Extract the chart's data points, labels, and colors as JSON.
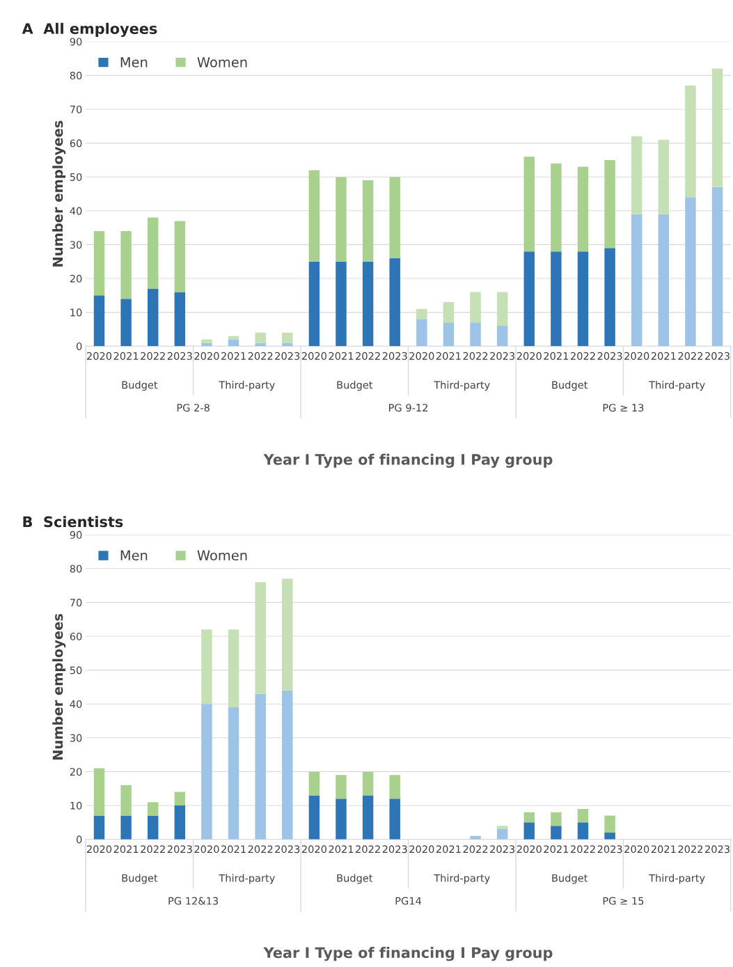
{
  "chart_data": [
    {
      "type": "bar",
      "title": "A  All employees",
      "xlabel": "Year I Type of financing I Pay group",
      "ylabel": "Number employees",
      "stacked": true,
      "ylim": [
        0,
        90
      ],
      "yticks": [
        0,
        10,
        20,
        30,
        40,
        50,
        60,
        70,
        80,
        90
      ],
      "grid": "y",
      "legend": "top left",
      "categories": [
        "2020",
        "2021",
        "2022",
        "2023",
        "2020",
        "2021",
        "2022",
        "2023",
        "2020",
        "2021",
        "2022",
        "2023",
        "2020",
        "2021",
        "2022",
        "2023",
        "2020",
        "2021",
        "2022",
        "2023",
        "2020",
        "2021",
        "2022",
        "2023"
      ],
      "annotations": [
        "Budget",
        "Third-party",
        "Budget",
        "Third-party",
        "Budget",
        "Third-party",
        "PG 2-8",
        "PG 9-12",
        "PG ≥ 13"
      ],
      "series": [
        {
          "name": "Men",
          "color": "#2e75b6",
          "values": [
            15,
            14,
            17,
            16,
            1,
            2,
            1,
            1,
            25,
            25,
            25,
            26,
            8,
            7,
            7,
            6,
            28,
            28,
            28,
            29,
            39,
            39,
            44,
            47
          ],
          "colors": [
            "#2e75b6",
            "#2e75b6",
            "#2e75b6",
            "#2e75b6",
            "#9dc3e6",
            "#9dc3e6",
            "#9dc3e6",
            "#9dc3e6",
            "#2e75b6",
            "#2e75b6",
            "#2e75b6",
            "#2e75b6",
            "#9dc3e6",
            "#9dc3e6",
            "#9dc3e6",
            "#9dc3e6",
            "#2e75b6",
            "#2e75b6",
            "#2e75b6",
            "#2e75b6",
            "#9dc3e6",
            "#9dc3e6",
            "#9dc3e6",
            "#9dc3e6"
          ]
        },
        {
          "name": "Women",
          "color": "#a9d18e",
          "values": [
            19,
            20,
            21,
            21,
            1,
            1,
            3,
            3,
            27,
            25,
            24,
            24,
            3,
            6,
            9,
            10,
            28,
            26,
            25,
            26,
            23,
            22,
            33,
            35
          ],
          "colors": [
            "#a9d18e",
            "#a9d18e",
            "#a9d18e",
            "#a9d18e",
            "#c5e0b4",
            "#c5e0b4",
            "#c5e0b4",
            "#c5e0b4",
            "#a9d18e",
            "#a9d18e",
            "#a9d18e",
            "#a9d18e",
            "#c5e0b4",
            "#c5e0b4",
            "#c5e0b4",
            "#c5e0b4",
            "#a9d18e",
            "#a9d18e",
            "#a9d18e",
            "#a9d18e",
            "#c5e0b4",
            "#c5e0b4",
            "#c5e0b4",
            "#c5e0b4"
          ]
        }
      ]
    },
    {
      "type": "bar",
      "title": "B  Scientists",
      "xlabel": "Year I Type of financing I Pay group",
      "ylabel": "Number employees",
      "stacked": true,
      "ylim": [
        0,
        90
      ],
      "yticks": [
        0,
        10,
        20,
        30,
        40,
        50,
        60,
        70,
        80,
        90
      ],
      "grid": "y",
      "legend": "top left",
      "categories": [
        "2020",
        "2021",
        "2022",
        "2023",
        "2020",
        "2021",
        "2022",
        "2023",
        "2020",
        "2021",
        "2022",
        "2023",
        "2020",
        "2021",
        "2022",
        "2023",
        "2020",
        "2021",
        "2022",
        "2023",
        "2020",
        "2021",
        "2022",
        "2023"
      ],
      "annotations": [
        "Budget",
        "Third-party",
        "Budget",
        "Third-party",
        "Budget",
        "Third-party",
        "PG 12&13",
        "PG14",
        "PG ≥ 15"
      ],
      "series": [
        {
          "name": "Men",
          "color": "#2e75b6",
          "values": [
            7,
            7,
            7,
            10,
            40,
            39,
            43,
            44,
            13,
            12,
            13,
            12,
            0,
            0,
            1,
            3,
            5,
            4,
            5,
            2,
            0,
            0,
            0,
            0
          ],
          "colors": [
            "#2e75b6",
            "#2e75b6",
            "#2e75b6",
            "#2e75b6",
            "#9dc3e6",
            "#9dc3e6",
            "#9dc3e6",
            "#9dc3e6",
            "#2e75b6",
            "#2e75b6",
            "#2e75b6",
            "#2e75b6",
            "#9dc3e6",
            "#9dc3e6",
            "#9dc3e6",
            "#9dc3e6",
            "#2e75b6",
            "#2e75b6",
            "#2e75b6",
            "#2e75b6",
            "#9dc3e6",
            "#9dc3e6",
            "#9dc3e6",
            "#9dc3e6"
          ]
        },
        {
          "name": "Women",
          "color": "#a9d18e",
          "values": [
            14,
            9,
            4,
            4,
            22,
            23,
            33,
            33,
            7,
            7,
            7,
            7,
            0,
            0,
            0,
            1,
            3,
            4,
            4,
            5,
            0,
            0,
            0,
            0
          ],
          "colors": [
            "#a9d18e",
            "#a9d18e",
            "#a9d18e",
            "#a9d18e",
            "#c5e0b4",
            "#c5e0b4",
            "#c5e0b4",
            "#c5e0b4",
            "#a9d18e",
            "#a9d18e",
            "#a9d18e",
            "#a9d18e",
            "#c5e0b4",
            "#c5e0b4",
            "#c5e0b4",
            "#c5e0b4",
            "#a9d18e",
            "#a9d18e",
            "#a9d18e",
            "#a9d18e",
            "#c5e0b4",
            "#c5e0b4",
            "#c5e0b4",
            "#c5e0b4"
          ]
        }
      ]
    }
  ]
}
